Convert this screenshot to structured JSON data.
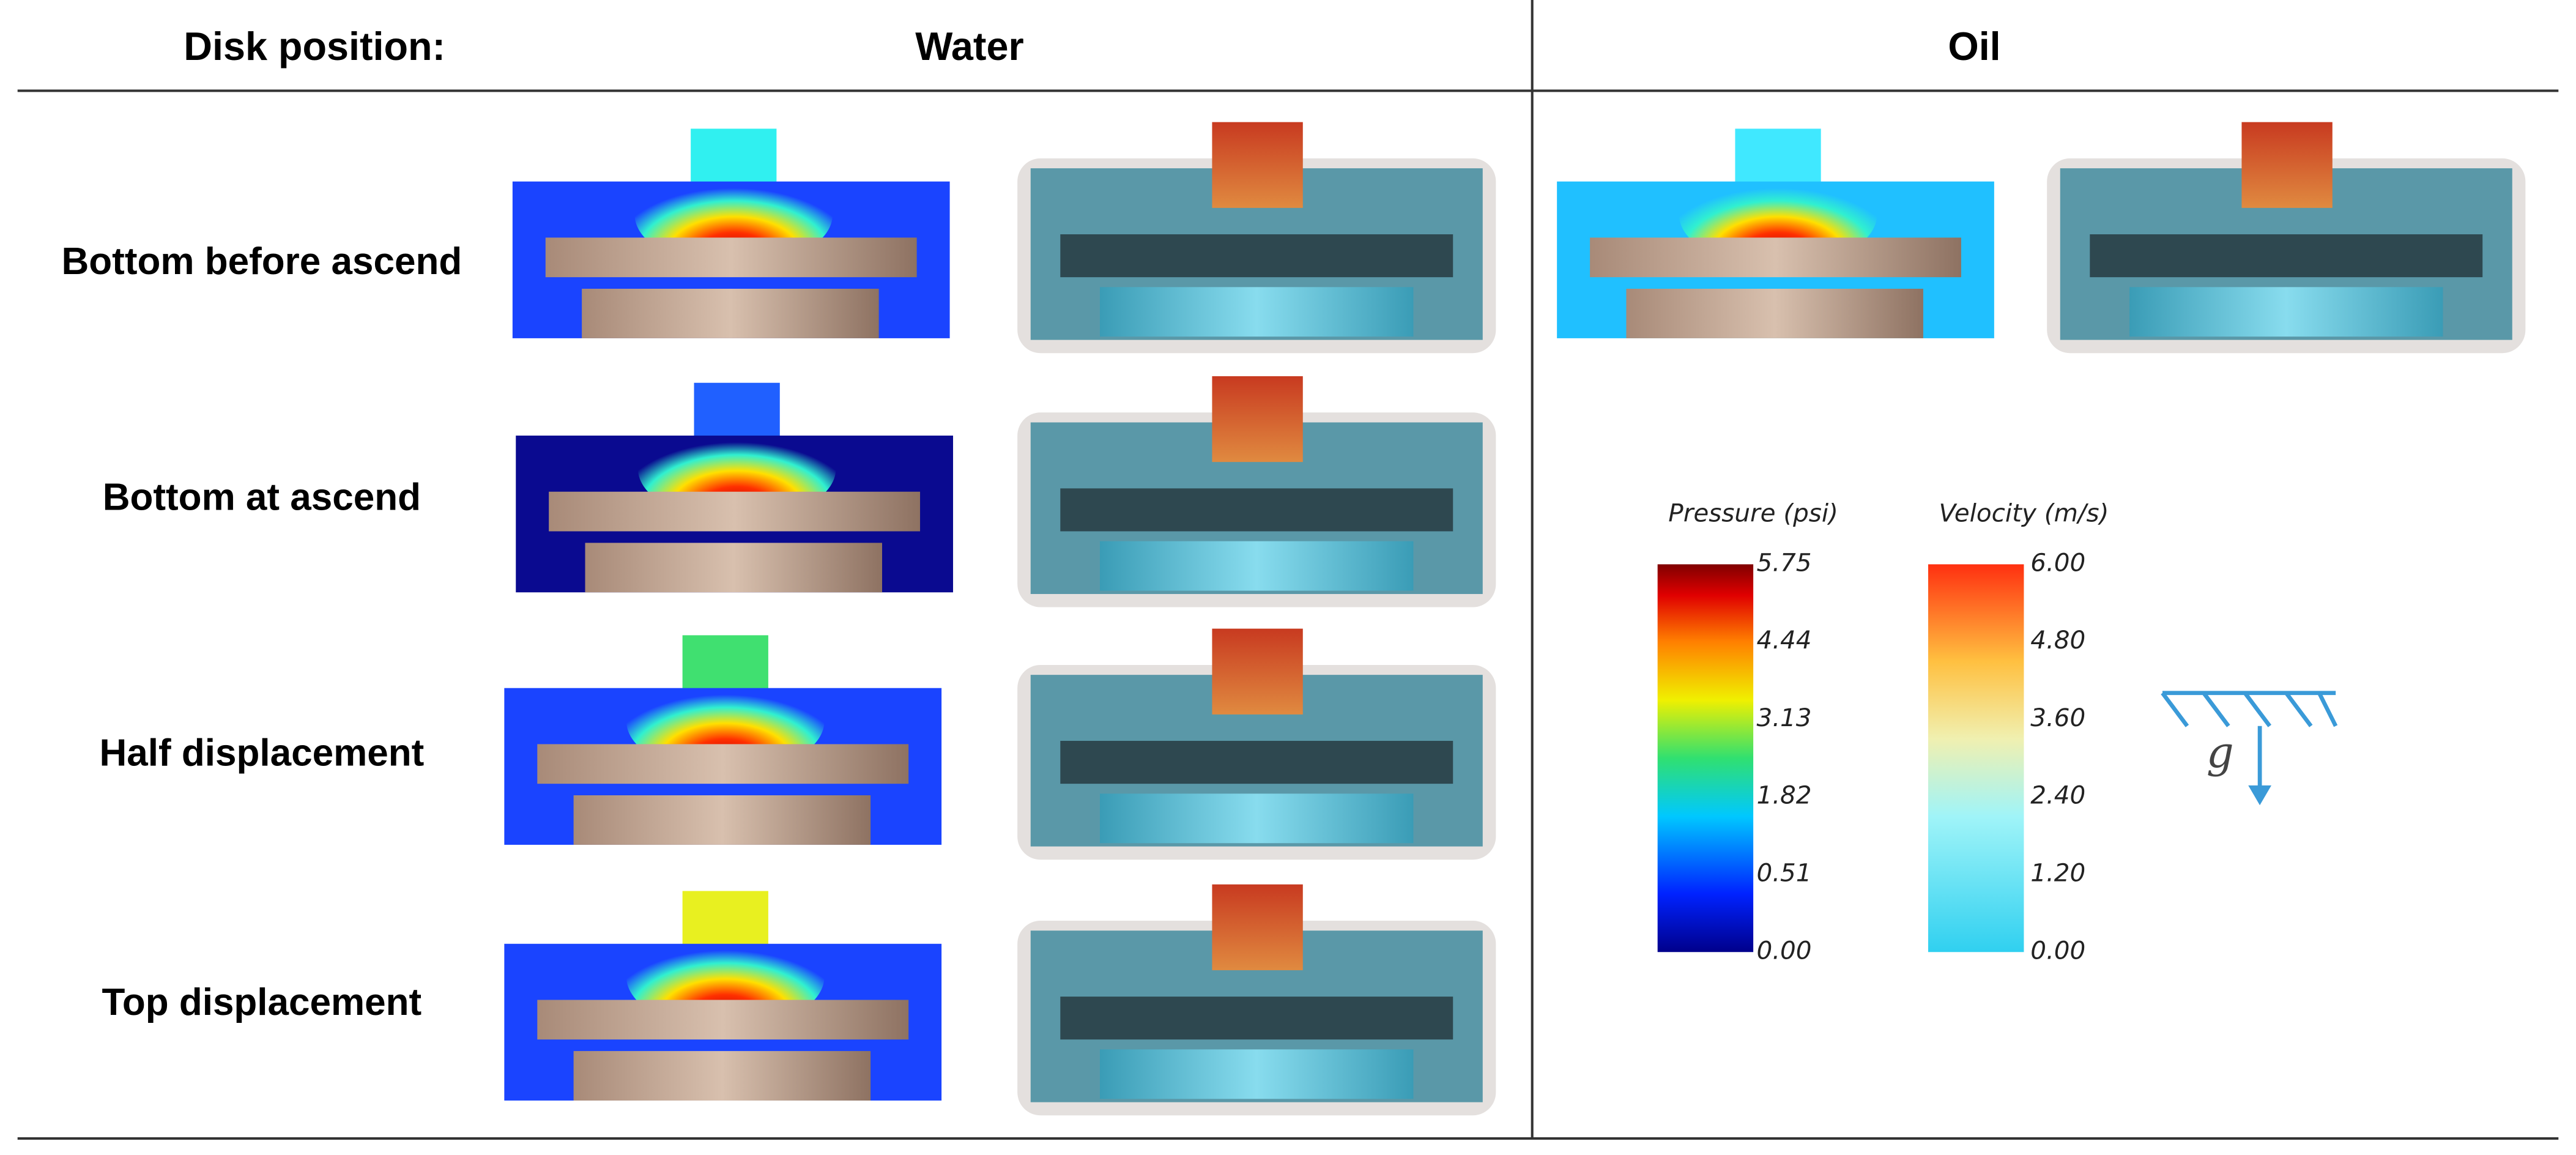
{
  "header": {
    "position": "Disk position:",
    "water": "Water",
    "oil": "Oil"
  },
  "rows": [
    "Bottom before ascend",
    "Bottom at ascend",
    "Half displacement",
    "Top displacement"
  ],
  "legends": [
    {
      "title": "Pressure (psi)",
      "ticks": [
        "5.75",
        "4.44",
        "3.13",
        "1.82",
        "0.51",
        "0.00"
      ]
    },
    {
      "title": "Velocity (m/s)",
      "ticks": [
        "6.00",
        "4.80",
        "3.60",
        "2.40",
        "1.20",
        "0.00"
      ]
    }
  ],
  "gravity_label": "g"
}
